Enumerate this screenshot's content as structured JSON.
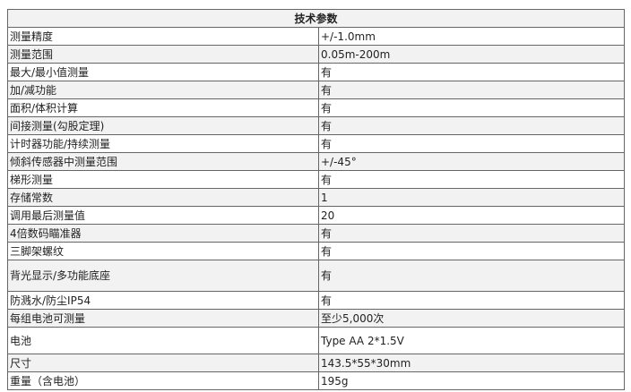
{
  "table": {
    "header": "技术参数",
    "rows": [
      [
        "测量精度",
        "+/-1.0mm"
      ],
      [
        "测量范围",
        "0.05m-200m"
      ],
      [
        "最大/最小值测量",
        "有"
      ],
      [
        "加/减功能",
        "有"
      ],
      [
        "面积/体积计算",
        "有"
      ],
      [
        "间接测量(勾股定理)",
        "有"
      ],
      [
        "计时器功能/持续测量",
        "有"
      ],
      [
        "倾斜传感器中测量范围",
        "+/-45°"
      ],
      [
        "梯形测量",
        "有"
      ],
      [
        "存储常数",
        "1"
      ],
      [
        "调用最后测量值",
        "20"
      ],
      [
        "4倍数码瞄准器",
        "有"
      ],
      [
        "三脚架螺纹",
        "有"
      ],
      [
        "背光显示/多功能底座",
        "有"
      ],
      [
        "防溅水/防尘IP54",
        "有"
      ],
      [
        "每组电池可测量",
        "至少5,000次"
      ],
      [
        "电池",
        "Type AA 2*1.5V"
      ],
      [
        "尺寸",
        "143.5*55*30mm"
      ],
      [
        "重量（含电池）",
        "195g"
      ]
    ]
  }
}
